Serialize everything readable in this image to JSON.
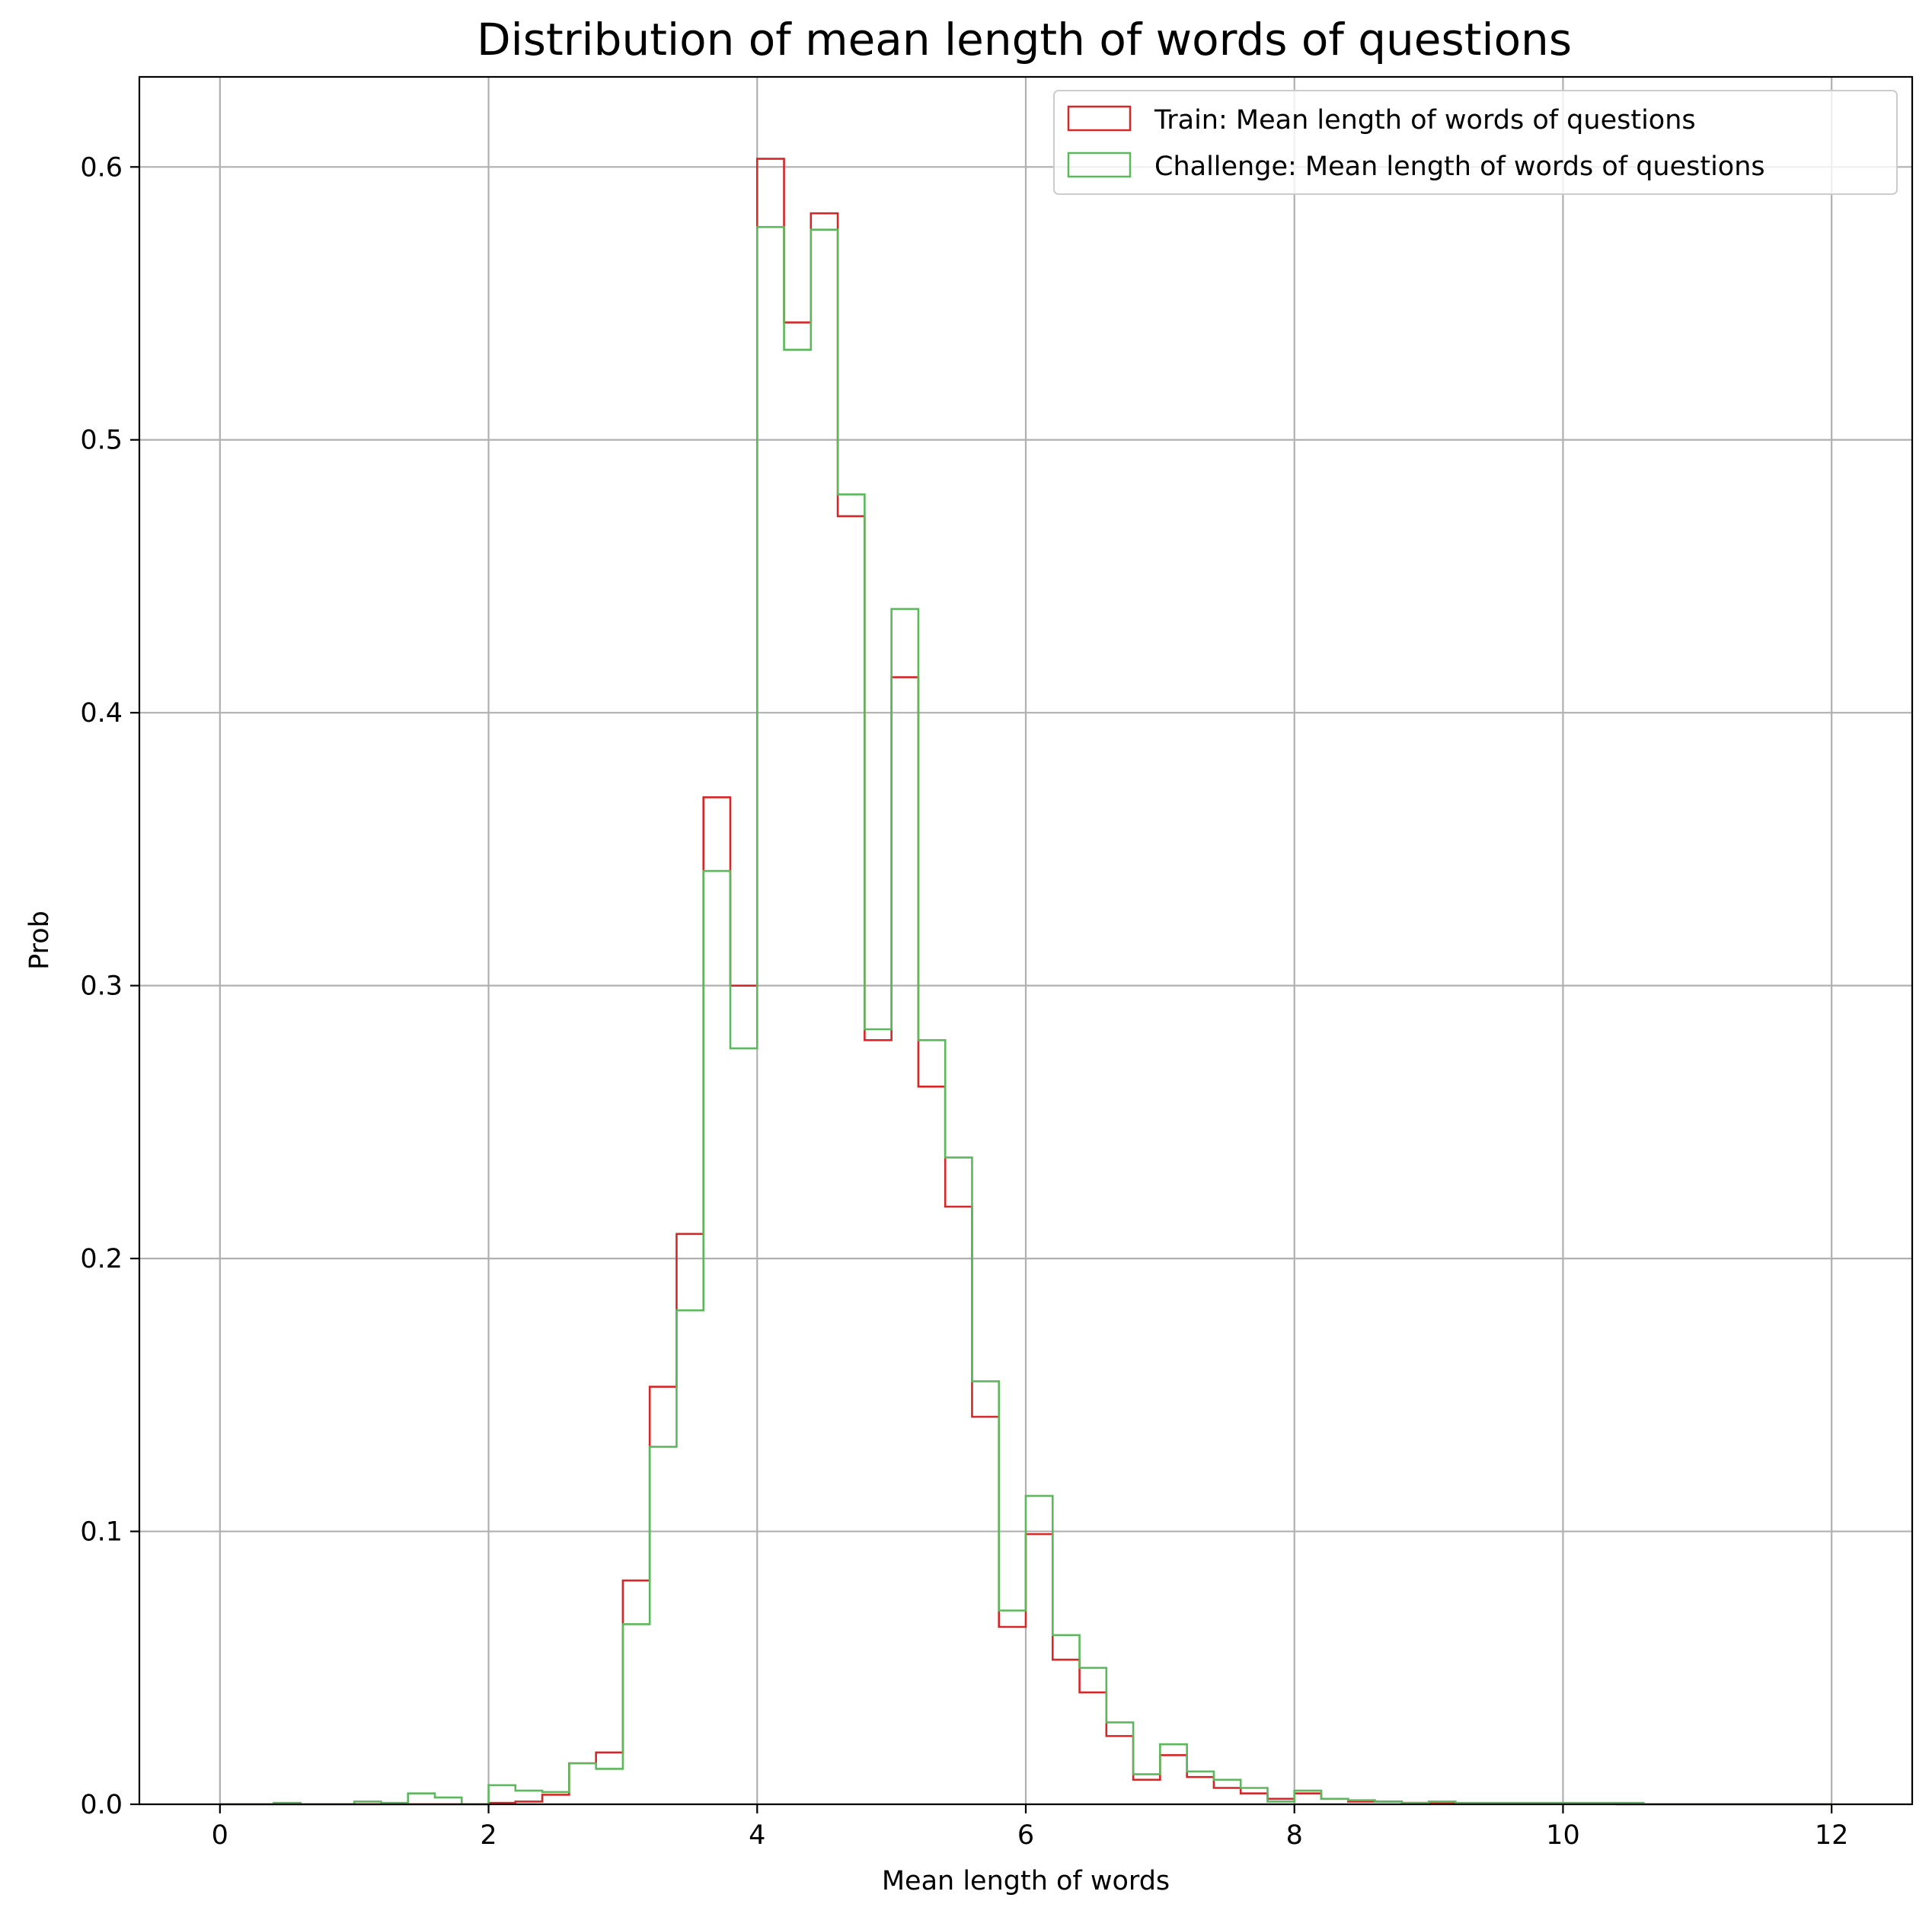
{
  "chart_data": {
    "type": "histogram",
    "title": "Distribution of mean length of words of questions",
    "xlabel": "Mean length of words",
    "ylabel": "Prob",
    "xlim": [
      -0.6,
      12.6
    ],
    "ylim": [
      0,
      0.633
    ],
    "xticks": [
      0,
      2,
      4,
      6,
      8,
      10,
      12
    ],
    "xtick_labels": [
      "0",
      "2",
      "4",
      "6",
      "8",
      "10",
      "12"
    ],
    "yticks": [
      0.0,
      0.1,
      0.2,
      0.3,
      0.4,
      0.5,
      0.6
    ],
    "ytick_labels": [
      "0.0",
      "0.1",
      "0.2",
      "0.3",
      "0.4",
      "0.5",
      "0.6"
    ],
    "grid": true,
    "legend_position": "upper right",
    "bin_edges": [
      0,
      0.2,
      0.4,
      0.6,
      0.8,
      1.0,
      1.2,
      1.4,
      1.6,
      1.8,
      2.0,
      2.2,
      2.4,
      2.6,
      2.8,
      3.0,
      3.2,
      3.4,
      3.6,
      3.8,
      4.0,
      4.2,
      4.4,
      4.6,
      4.8,
      5.0,
      5.2,
      5.4,
      5.6,
      5.8,
      6.0,
      6.2,
      6.4,
      6.6,
      6.8,
      7.0,
      7.2,
      7.4,
      7.6,
      7.8,
      8.0,
      8.2,
      8.4,
      8.6,
      8.8,
      9.0,
      9.2,
      9.4,
      9.6,
      9.8,
      10.0,
      10.2,
      10.4,
      10.6,
      10.8,
      11.0,
      11.2,
      11.4,
      11.6,
      11.8,
      12.0
    ],
    "series": [
      {
        "name": "Train: Mean length of words of questions",
        "color": "#d62728",
        "values": [
          0,
          0,
          0,
          0,
          0,
          0,
          0,
          0,
          0,
          0,
          0.0005,
          0.001,
          0.0035,
          0.015,
          0.019,
          0.082,
          0.153,
          0.209,
          0.369,
          0.3,
          0.603,
          0.543,
          0.583,
          0.472,
          0.28,
          0.413,
          0.263,
          0.219,
          0.142,
          0.065,
          0.099,
          0.053,
          0.041,
          0.025,
          0.009,
          0.018,
          0.01,
          0.006,
          0.004,
          0.002,
          0.004,
          0.002,
          0.001,
          0.001,
          0.0005,
          0.0005,
          0.0003,
          0.0003,
          0.0002,
          0.0002,
          0.0001,
          0.0001,
          0,
          0,
          0,
          0,
          0,
          0,
          0,
          0
        ]
      },
      {
        "name": "Challenge: Mean length of words of questions",
        "color": "#5cb85c",
        "values": [
          0,
          0,
          0.0005,
          0,
          0,
          0.001,
          0.0005,
          0.004,
          0.0025,
          0,
          0.007,
          0.005,
          0.0045,
          0.015,
          0.013,
          0.066,
          0.131,
          0.181,
          0.342,
          0.277,
          0.578,
          0.533,
          0.577,
          0.48,
          0.284,
          0.438,
          0.28,
          0.237,
          0.155,
          0.071,
          0.113,
          0.062,
          0.05,
          0.03,
          0.011,
          0.022,
          0.012,
          0.009,
          0.006,
          0.001,
          0.005,
          0.002,
          0.0015,
          0.001,
          0.0005,
          0.001,
          0.0005,
          0.0005,
          0.0005,
          0.0005,
          0.0005,
          0.0005,
          0.0005,
          0,
          0,
          0,
          0,
          0,
          0,
          0
        ]
      }
    ]
  },
  "colors": {
    "grid": "#b0b0b0",
    "axis": "#000000"
  }
}
